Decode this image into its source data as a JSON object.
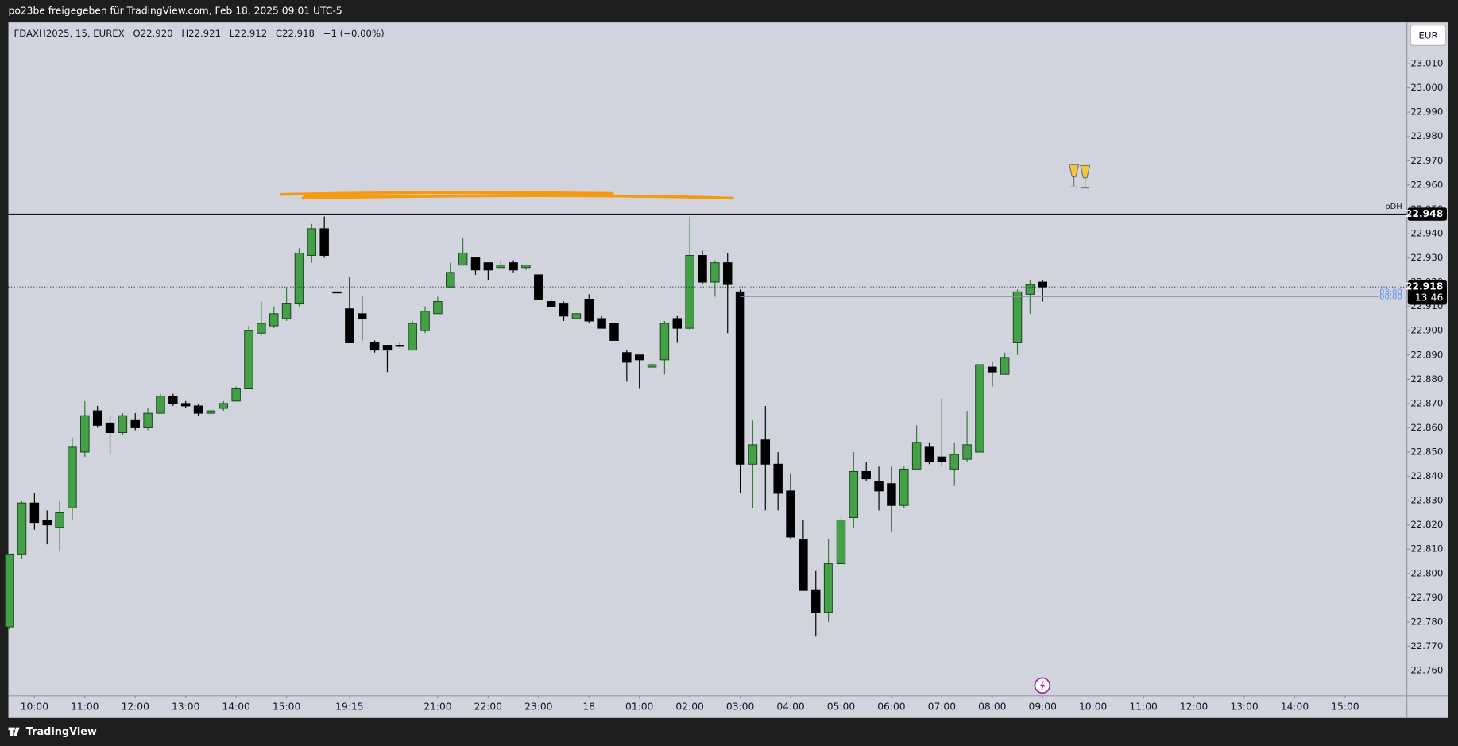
{
  "header": "po23be freigegeben für TradingView.com, Feb 18, 2025 09:01 UTC-5",
  "currency": "EUR",
  "footer": "TradingView",
  "chart_data": {
    "type": "candlestick",
    "legend_items": [
      "FDAXH2025, 15, EUREX",
      "O22.920",
      "H22.921",
      "L22.912",
      "C22.918",
      "−1 (−0,00%)"
    ],
    "up_color": "#43a047",
    "down_color": "#000000",
    "open": [
      22.778,
      22.808,
      22.829,
      22.822,
      22.819,
      22.827,
      22.85,
      22.867,
      22.862,
      22.858,
      22.863,
      22.86,
      22.866,
      22.873,
      22.87,
      22.869,
      22.866,
      22.868,
      22.871,
      22.876,
      22.899,
      22.902,
      22.905,
      22.911,
      22.931,
      22.942,
      22.916,
      22.909,
      22.907,
      22.895,
      22.894,
      22.894,
      22.892,
      22.9,
      22.907,
      22.918,
      22.927,
      22.93,
      22.928,
      22.926,
      22.928,
      22.926,
      22.923,
      22.912,
      22.911,
      22.905,
      22.913,
      22.905,
      22.903,
      22.891,
      22.89,
      22.885,
      22.888,
      22.905,
      22.901,
      22.931,
      22.92,
      22.928,
      22.916,
      22.845,
      22.855,
      22.845,
      22.834,
      22.814,
      22.793,
      22.784,
      22.804,
      22.823,
      22.842,
      22.838,
      22.837,
      22.828,
      22.843,
      22.852,
      22.848,
      22.843,
      22.847,
      22.85,
      22.885,
      22.882,
      22.895,
      22.915,
      22.92
    ],
    "high": [
      22.808,
      22.83,
      22.833,
      22.826,
      22.83,
      22.856,
      22.871,
      22.869,
      22.865,
      22.866,
      22.866,
      22.868,
      22.874,
      22.874,
      22.871,
      22.87,
      22.867,
      22.871,
      22.877,
      22.902,
      22.912,
      22.91,
      22.918,
      22.934,
      22.944,
      22.947,
      22.916,
      22.922,
      22.914,
      22.896,
      22.894,
      22.895,
      22.904,
      22.91,
      22.914,
      22.928,
      22.938,
      22.93,
      22.928,
      22.929,
      22.929,
      22.927,
      22.923,
      22.913,
      22.912,
      22.907,
      22.915,
      22.906,
      22.903,
      22.892,
      22.89,
      22.887,
      22.904,
      22.906,
      22.947,
      22.933,
      22.929,
      22.932,
      22.917,
      22.863,
      22.869,
      22.85,
      22.841,
      22.822,
      22.801,
      22.814,
      22.823,
      22.85,
      22.846,
      22.844,
      22.844,
      22.844,
      22.861,
      22.854,
      22.872,
      22.854,
      22.867,
      22.886,
      22.887,
      22.891,
      22.917,
      22.921,
      22.921
    ],
    "low": [
      22.777,
      22.806,
      22.818,
      22.812,
      22.809,
      22.822,
      22.848,
      22.86,
      22.849,
      22.857,
      22.859,
      22.859,
      22.866,
      22.869,
      22.868,
      22.865,
      22.865,
      22.867,
      22.871,
      22.876,
      22.898,
      22.901,
      22.904,
      22.91,
      22.928,
      22.93,
      22.916,
      22.895,
      22.896,
      22.891,
      22.883,
      22.893,
      22.892,
      22.899,
      22.907,
      22.918,
      22.927,
      22.923,
      22.921,
      22.926,
      22.924,
      22.925,
      22.913,
      22.91,
      22.904,
      22.905,
      22.903,
      22.901,
      22.896,
      22.879,
      22.876,
      22.885,
      22.882,
      22.895,
      22.9,
      22.919,
      22.914,
      22.899,
      22.833,
      22.827,
      22.826,
      22.826,
      22.814,
      22.793,
      22.774,
      22.78,
      22.804,
      22.819,
      22.838,
      22.826,
      22.817,
      22.827,
      22.843,
      22.845,
      22.844,
      22.836,
      22.846,
      22.85,
      22.877,
      22.882,
      22.89,
      22.907,
      22.912
    ],
    "close": [
      22.808,
      22.829,
      22.821,
      22.82,
      22.825,
      22.852,
      22.865,
      22.861,
      22.858,
      22.865,
      22.86,
      22.866,
      22.873,
      22.87,
      22.869,
      22.866,
      22.867,
      22.87,
      22.876,
      22.9,
      22.903,
      22.907,
      22.911,
      22.932,
      22.942,
      22.931,
      22.916,
      22.895,
      22.905,
      22.892,
      22.892,
      22.894,
      22.903,
      22.908,
      22.912,
      22.924,
      22.932,
      22.925,
      22.925,
      22.927,
      22.925,
      22.927,
      22.913,
      22.91,
      22.906,
      22.907,
      22.904,
      22.901,
      22.896,
      22.887,
      22.888,
      22.886,
      22.903,
      22.901,
      22.931,
      22.92,
      22.928,
      22.919,
      22.845,
      22.853,
      22.845,
      22.833,
      22.815,
      22.793,
      22.784,
      22.804,
      22.822,
      22.842,
      22.839,
      22.834,
      22.828,
      22.843,
      22.854,
      22.846,
      22.846,
      22.849,
      22.853,
      22.886,
      22.883,
      22.889,
      22.916,
      22.919,
      22.918
    ],
    "xlim": [
      -0.07,
      110.9
    ],
    "xticks": [
      {
        "value": 2,
        "label": "10:00"
      },
      {
        "value": 6,
        "label": "11:00"
      },
      {
        "value": 10,
        "label": "12:00"
      },
      {
        "value": 14,
        "label": "13:00"
      },
      {
        "value": 18,
        "label": "14:00"
      },
      {
        "value": 22,
        "label": "15:00"
      },
      {
        "value": 27,
        "label": "19:15"
      },
      {
        "value": 34,
        "label": "21:00"
      },
      {
        "value": 38,
        "label": "22:00"
      },
      {
        "value": 42,
        "label": "23:00"
      },
      {
        "value": 46,
        "label": "18"
      },
      {
        "value": 50,
        "label": "01:00"
      },
      {
        "value": 54,
        "label": "02:00"
      },
      {
        "value": 58,
        "label": "03:00"
      },
      {
        "value": 62,
        "label": "04:00"
      },
      {
        "value": 66,
        "label": "05:00"
      },
      {
        "value": 70,
        "label": "06:00"
      },
      {
        "value": 74,
        "label": "07:00"
      },
      {
        "value": 78,
        "label": "08:00"
      },
      {
        "value": 82,
        "label": "09:00"
      },
      {
        "value": 86,
        "label": "10:00"
      },
      {
        "value": 90,
        "label": "11:00"
      },
      {
        "value": 94,
        "label": "12:00"
      },
      {
        "value": 98,
        "label": "13:00"
      },
      {
        "value": 102,
        "label": "14:00"
      },
      {
        "value": 106,
        "label": "15:00"
      }
    ],
    "ylim": [
      22.75,
      23.027
    ],
    "yticks": [
      {
        "value": 23.01,
        "label": "23.010"
      },
      {
        "value": 23,
        "label": "23.000"
      },
      {
        "value": 22.99,
        "label": "22.990"
      },
      {
        "value": 22.98,
        "label": "22.980"
      },
      {
        "value": 22.97,
        "label": "22.970"
      },
      {
        "value": 22.96,
        "label": "22.960"
      },
      {
        "value": 22.95,
        "label": "22.950"
      },
      {
        "value": 22.94,
        "label": "22.940"
      },
      {
        "value": 22.93,
        "label": "22.930"
      },
      {
        "value": 22.92,
        "label": "22.920"
      },
      {
        "value": 22.91,
        "label": "22.910"
      },
      {
        "value": 22.9,
        "label": "22.900"
      },
      {
        "value": 22.89,
        "label": "22.890"
      },
      {
        "value": 22.88,
        "label": "22.880"
      },
      {
        "value": 22.87,
        "label": "22.870"
      },
      {
        "value": 22.86,
        "label": "22.860"
      },
      {
        "value": 22.85,
        "label": "22.850"
      },
      {
        "value": 22.84,
        "label": "22.840"
      },
      {
        "value": 22.83,
        "label": "22.830"
      },
      {
        "value": 22.82,
        "label": "22.820"
      },
      {
        "value": 22.81,
        "label": "22.810"
      },
      {
        "value": 22.8,
        "label": "22.800"
      },
      {
        "value": 22.79,
        "label": "22.790"
      },
      {
        "value": 22.78,
        "label": "22.780"
      },
      {
        "value": 22.77,
        "label": "22.770"
      },
      {
        "value": 22.76,
        "label": "22.760"
      }
    ],
    "hlines": [
      {
        "name": "pDH",
        "value": 22.948,
        "label": "22.948",
        "style": "solid"
      },
      {
        "value": 22.918,
        "label": "22.918",
        "timer": "13:46",
        "style": "dotted"
      },
      {
        "name": "03:00",
        "value": 22.916,
        "style": "thin"
      },
      {
        "name": "00:00",
        "value": 22.914,
        "style": "thin"
      }
    ]
  }
}
